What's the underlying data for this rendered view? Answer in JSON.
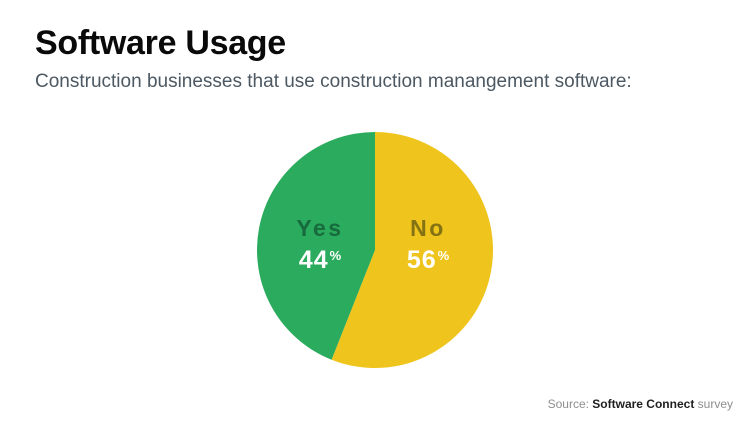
{
  "page": {
    "title": "Software Usage",
    "subtitle": "Construction businesses that use construction manangement software:"
  },
  "source": {
    "prefix": "Source:",
    "name": "Software Connect",
    "suffix": "survey"
  },
  "chart_data": {
    "type": "pie",
    "title": "Software Usage",
    "description": "Construction businesses that use construction manangement software",
    "unit": "%",
    "start_angle_deg": 0,
    "direction": "clockwise",
    "labels_position": "inside",
    "slices": [
      {
        "label": "No",
        "value": 56,
        "color": "#eec41d",
        "label_color": "#857213",
        "value_color": "#ffffff"
      },
      {
        "label": "Yes",
        "value": 44,
        "color": "#2bab5d",
        "label_color": "#176b3c",
        "value_color": "#ffffff"
      }
    ]
  }
}
